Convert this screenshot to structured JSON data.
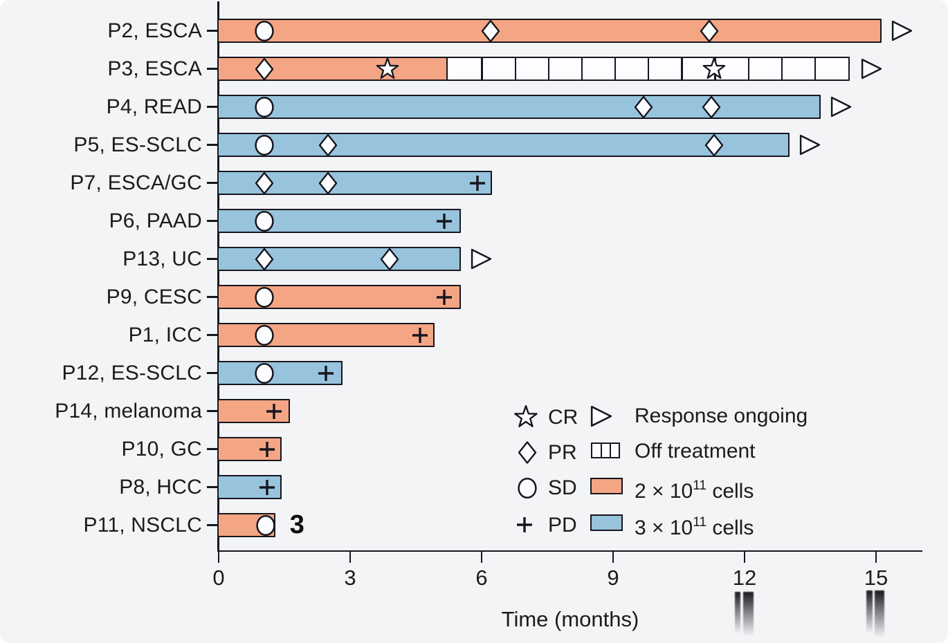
{
  "chart_data": {
    "type": "bar",
    "subtype": "swimmer-plot",
    "xlabel": "Time (months)",
    "x_ticks": [
      0,
      3,
      6,
      9,
      12,
      15
    ],
    "xlim": [
      0,
      16.1
    ],
    "x_unit": "months",
    "grid": false,
    "legend_position": "bottom-right-inside",
    "colors": {
      "dose_2e11_fill": "#F4A583",
      "dose_3e11_fill": "#97C3DC",
      "off_treatment_fill": "#FCFDFF",
      "outline": "#16161E",
      "background": "#F3F4F6",
      "text": "#1B1B1B"
    },
    "marker_legend": [
      {
        "marker": "star",
        "label": "CR"
      },
      {
        "marker": "diamond",
        "label": "PR"
      },
      {
        "marker": "circle",
        "label": "SD"
      },
      {
        "marker": "plus",
        "label": "PD"
      }
    ],
    "misc_legend": {
      "ongoing": {
        "symbol": "open-right-arrow",
        "label": "Response ongoing"
      },
      "off_treatment": {
        "symbol": "hatched-bar",
        "label": "Off treatment"
      },
      "dose_2e11": {
        "symbol": "orange-bar",
        "label_prefix": "2 × 10",
        "label_sup": "11",
        "label_suffix": " cells"
      },
      "dose_3e11": {
        "symbol": "blue-bar",
        "label_prefix": "3 × 10",
        "label_sup": "11",
        "label_suffix": " cells"
      }
    },
    "patients": [
      {
        "label": "P2, ESCA",
        "dose": "2e11",
        "end": 15.1,
        "ongoing": true,
        "markers": [
          {
            "type": "circle",
            "month": 1.05
          },
          {
            "type": "diamond",
            "month": 6.2
          },
          {
            "type": "diamond",
            "month": 11.2
          }
        ]
      },
      {
        "label": "P3, ESCA",
        "dose": "2e11",
        "end": 14.4,
        "off_treatment_from": 5.2,
        "ongoing": true,
        "markers": [
          {
            "type": "diamond",
            "month": 1.05
          },
          {
            "type": "star",
            "month": 3.85
          },
          {
            "type": "star",
            "month": 11.3
          }
        ]
      },
      {
        "label": "P4, READ",
        "dose": "3e11",
        "end": 13.7,
        "ongoing": true,
        "markers": [
          {
            "type": "circle",
            "month": 1.05
          },
          {
            "type": "diamond",
            "month": 9.7
          },
          {
            "type": "diamond",
            "month": 11.25
          }
        ]
      },
      {
        "label": "P5, ES-SCLC",
        "dose": "3e11",
        "end": 13.0,
        "ongoing": true,
        "markers": [
          {
            "type": "circle",
            "month": 1.05
          },
          {
            "type": "diamond",
            "month": 2.5
          },
          {
            "type": "diamond",
            "month": 11.3
          }
        ]
      },
      {
        "label": "P7, ESCA/GC",
        "dose": "3e11",
        "end": 6.2,
        "markers": [
          {
            "type": "diamond",
            "month": 1.05
          },
          {
            "type": "diamond",
            "month": 2.5
          },
          {
            "type": "plus",
            "month": 5.9
          }
        ]
      },
      {
        "label": "P6, PAAD",
        "dose": "3e11",
        "end": 5.5,
        "markers": [
          {
            "type": "circle",
            "month": 1.05
          },
          {
            "type": "plus",
            "month": 5.15
          }
        ]
      },
      {
        "label": "P13, UC",
        "dose": "3e11",
        "end": 5.5,
        "ongoing": true,
        "markers": [
          {
            "type": "diamond",
            "month": 1.05
          },
          {
            "type": "diamond",
            "month": 3.9
          }
        ]
      },
      {
        "label": "P9, CESC",
        "dose": "2e11",
        "end": 5.5,
        "markers": [
          {
            "type": "circle",
            "month": 1.05
          },
          {
            "type": "plus",
            "month": 5.15
          }
        ]
      },
      {
        "label": "P1, ICC",
        "dose": "2e11",
        "end": 4.9,
        "markers": [
          {
            "type": "circle",
            "month": 1.05
          },
          {
            "type": "plus",
            "month": 4.6
          }
        ]
      },
      {
        "label": "P12, ES-SCLC",
        "dose": "3e11",
        "end": 2.8,
        "markers": [
          {
            "type": "circle",
            "month": 1.05
          },
          {
            "type": "plus",
            "month": 2.45
          }
        ]
      },
      {
        "label": "P14, melanoma",
        "dose": "2e11",
        "end": 1.6,
        "markers": [
          {
            "type": "plus",
            "month": 1.27
          }
        ]
      },
      {
        "label": "P10, GC",
        "dose": "2e11",
        "end": 1.4,
        "markers": [
          {
            "type": "plus",
            "month": 1.1
          }
        ]
      },
      {
        "label": "P8, HCC",
        "dose": "3e11",
        "end": 1.4,
        "markers": [
          {
            "type": "plus",
            "month": 1.1
          }
        ]
      },
      {
        "label": "P11, NSCLC",
        "dose": "2e11",
        "end": 1.26,
        "annotation": "3",
        "markers": [
          {
            "type": "circle",
            "month": 1.07
          }
        ]
      }
    ]
  }
}
